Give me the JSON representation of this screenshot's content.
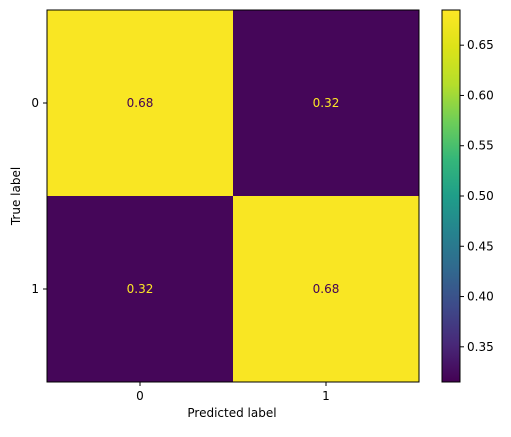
{
  "chart_data": {
    "type": "heatmap",
    "title": "",
    "xlabel": "Predicted label",
    "ylabel": "True label",
    "x_categories": [
      "0",
      "1"
    ],
    "y_categories": [
      "0",
      "1"
    ],
    "values": [
      [
        0.68,
        0.32
      ],
      [
        0.32,
        0.68
      ]
    ],
    "cell_labels": [
      [
        "0.68",
        "0.32"
      ],
      [
        "0.32",
        "0.68"
      ]
    ],
    "colormap": "viridis",
    "colorbar": {
      "range": [
        0.315,
        0.685
      ],
      "ticks": [
        0.35,
        0.4,
        0.45,
        0.5,
        0.55,
        0.6,
        0.65
      ],
      "tick_labels": [
        "0.35",
        "0.40",
        "0.45",
        "0.50",
        "0.55",
        "0.60",
        "0.65"
      ]
    },
    "colors": {
      "high": "#fde725",
      "low": "#440154",
      "text_on_dark": "#fde725",
      "text_on_light": "#440154"
    },
    "grid": false,
    "legend": "colorbar-right"
  }
}
